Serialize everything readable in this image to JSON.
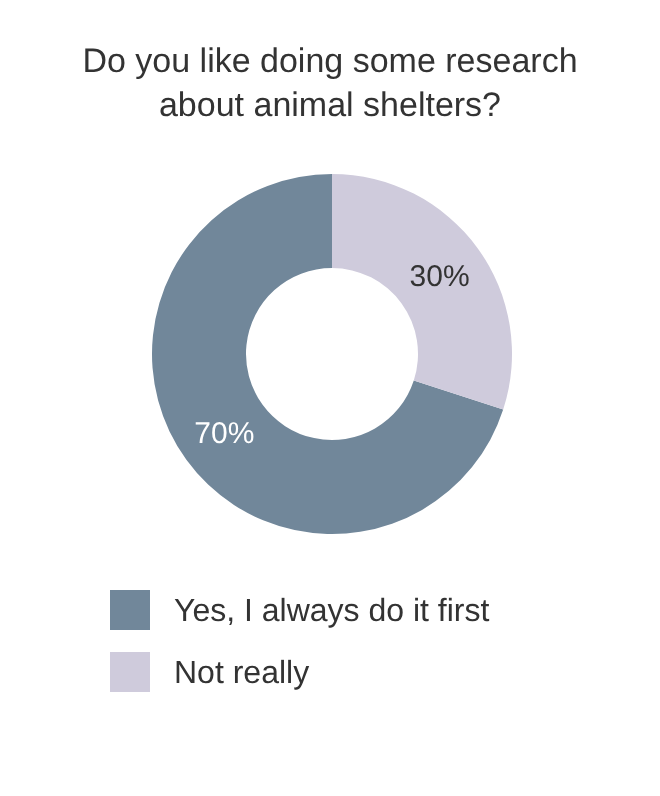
{
  "chart_data": {
    "type": "donut",
    "title": "Do you like doing some research about animal shelters?",
    "categories": [
      "Yes, I always do it first",
      "Not really"
    ],
    "values": [
      70,
      30
    ],
    "value_labels": [
      "70%",
      "30%"
    ],
    "colors": [
      "#71879a",
      "#cfcbdc"
    ],
    "legend": "bottom"
  }
}
